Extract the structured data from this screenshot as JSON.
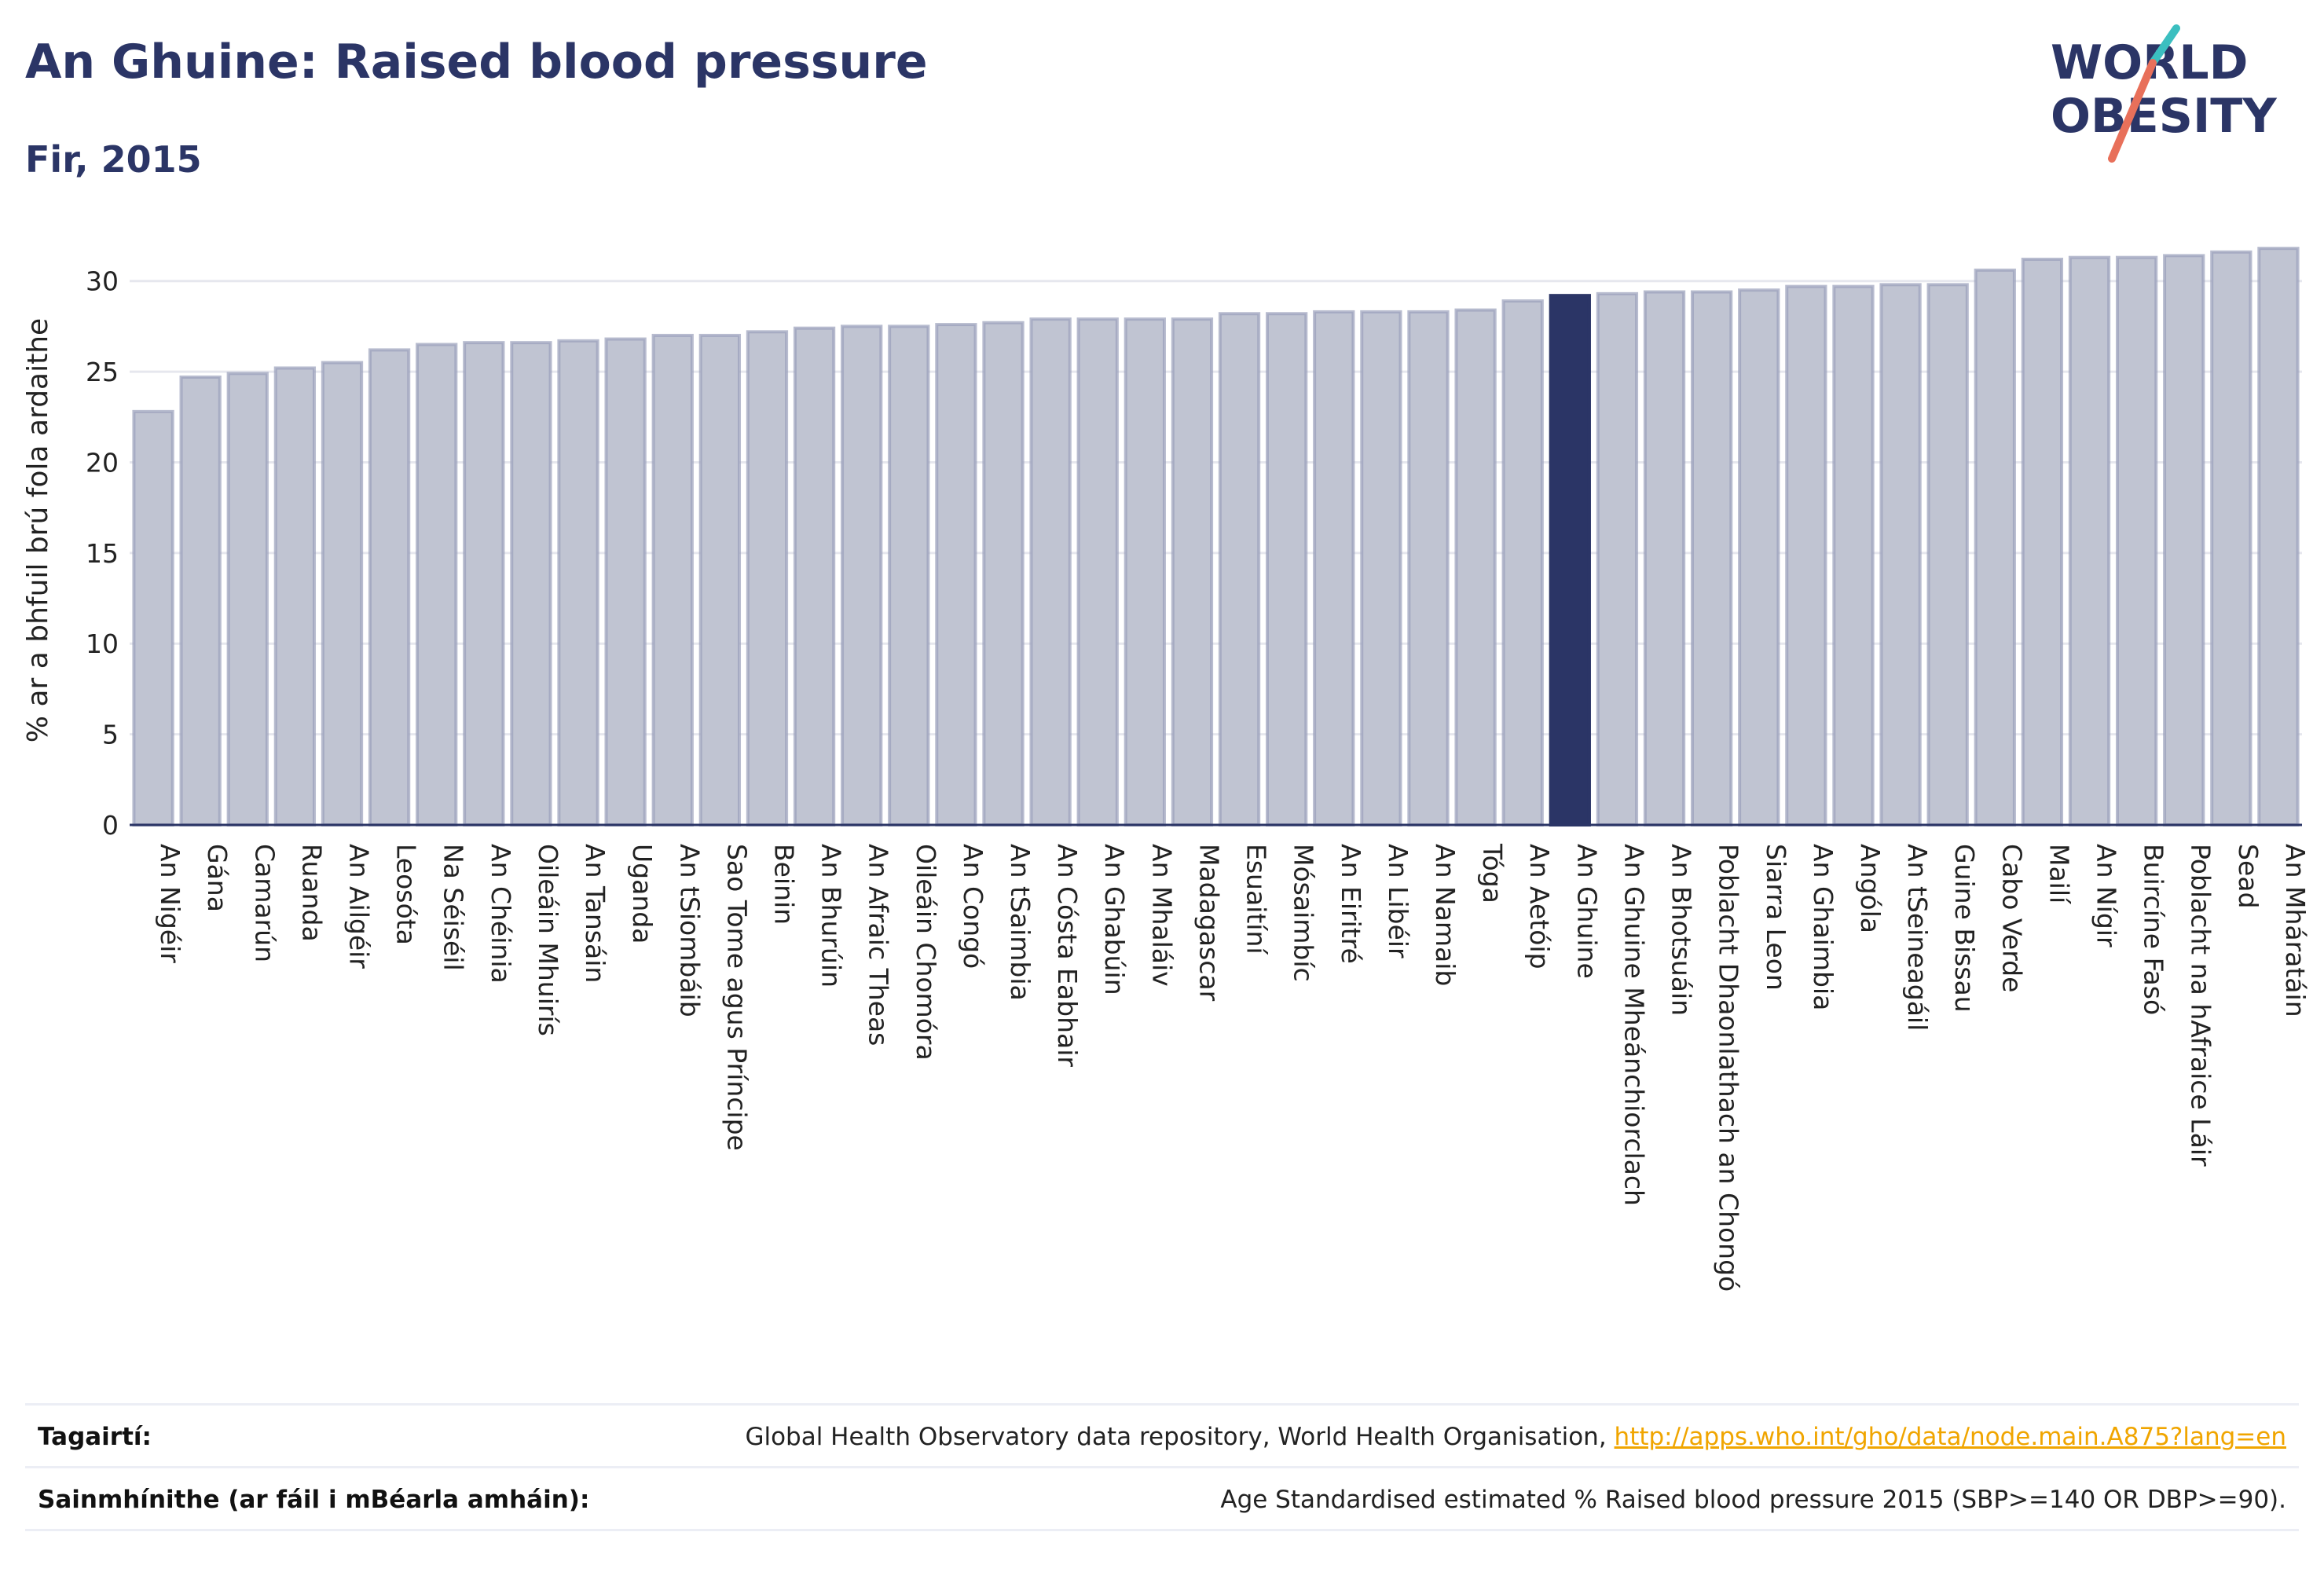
{
  "header": {
    "title": "An Ghuine: Raised blood pressure",
    "subtitle": "Fir, 2015"
  },
  "logo": {
    "line1": "WORLD",
    "line2": "OBESITY",
    "colors": {
      "text": "#2b3566",
      "accent_teal": "#3bbfc0",
      "accent_red": "#e8705a"
    }
  },
  "chart_data": {
    "type": "bar",
    "title": "",
    "xlabel": "",
    "ylabel": "% ar a bhfuil brú fola ardaithe",
    "ylim": [
      0,
      32.5
    ],
    "yticks": [
      0,
      5,
      10,
      15,
      20,
      25,
      30
    ],
    "grid": true,
    "highlight": "An Ghuine",
    "colors": {
      "bar": "#c0c4d2",
      "bar_edge": "#9aa0ba",
      "highlight": "#2b3566"
    },
    "categories": [
      "An Nigéir",
      "Gána",
      "Camarún",
      "Ruanda",
      "An Ailgéir",
      "Leosóta",
      "Na Séiséil",
      "An Chéinia",
      "Oileáin Mhuirís",
      "An Tansáin",
      "Uganda",
      "An tSiombáib",
      "Sao Tome agus Príncipe",
      "Beinin",
      "An Bhurúin",
      "An Afraic Theas",
      "Oileáin Chomóra",
      "An Congó",
      "An tSaimbia",
      "An Cósta Eabhair",
      "An Ghabúin",
      "An Mhaláiv",
      "Madagascar",
      "Esuaitíní",
      "Mósaimbíc",
      "An Eiritré",
      "An Libéir",
      "An Namaib",
      "Tóga",
      "An Aetóip",
      "An Ghuine",
      "An Ghuine Mheánchiorclach",
      "An Bhotsuáin",
      "Poblacht Dhaonlathach an Chongó",
      "Siarra Leon",
      "An Ghaimbia",
      "Angóla",
      "An tSeineagáil",
      "Guine Bissau",
      "Cabo Verde",
      "Mailí",
      "An Nígir",
      "Buircíne Fasó",
      "Poblacht na hAfraice Láir",
      "Sead",
      "An Mháratáin"
    ],
    "values": [
      22.8,
      24.7,
      24.9,
      25.2,
      25.5,
      26.2,
      26.5,
      26.6,
      26.6,
      26.7,
      26.8,
      27.0,
      27.0,
      27.2,
      27.4,
      27.5,
      27.5,
      27.6,
      27.7,
      27.9,
      27.9,
      27.9,
      27.9,
      28.2,
      28.2,
      28.3,
      28.3,
      28.3,
      28.4,
      28.9,
      29.2,
      29.3,
      29.4,
      29.4,
      29.5,
      29.7,
      29.7,
      29.8,
      29.8,
      30.6,
      31.2,
      31.3,
      31.3,
      31.4,
      31.6,
      31.8
    ]
  },
  "references": {
    "label": "Tagairtí:",
    "text": "Global Health Observatory data repository, World Health Organisation, ",
    "link": "http://apps.who.int/gho/data/node.main.A875?lang=en"
  },
  "definitions": {
    "label": "Sainmhínithe (ar fáil i mBéarla amháin):",
    "text": "Age Standardised estimated % Raised blood pressure 2015 (SBP>=140 OR DBP>=90)."
  }
}
